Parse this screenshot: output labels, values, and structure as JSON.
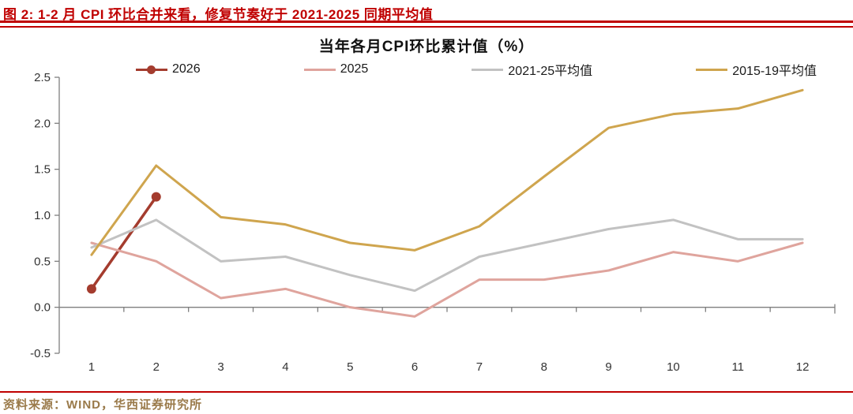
{
  "page": {
    "report_title": "图 2: 1-2 月 CPI 环比合并来看，修复节奏好于 2021-2025 同期平均值",
    "source_note": "资料来源：WIND，华西证券研究所",
    "accent_red": "#C00000",
    "source_text_color": "#9A7A4A"
  },
  "chart_data": {
    "type": "line",
    "title": "当年各月CPI环比累计值（%）",
    "xlabel": "",
    "ylabel": "",
    "categories": [
      "1",
      "2",
      "3",
      "4",
      "5",
      "6",
      "7",
      "8",
      "9",
      "10",
      "11",
      "12"
    ],
    "y_ticks": [
      "2.5",
      "2.0",
      "1.5",
      "1.0",
      "0.5",
      "0.0",
      "-0.5"
    ],
    "y_tick_values": [
      2.5,
      2.0,
      1.5,
      1.0,
      0.5,
      0.0,
      -0.5
    ],
    "ylim": [
      -0.5,
      2.5
    ],
    "grid": false,
    "legend_position": "top",
    "axis_color": "#7f7f7f",
    "tick_label_color": "#333333",
    "series": [
      {
        "name": "2026",
        "color": "#A43C2E",
        "marker": "circle",
        "values": [
          0.2,
          1.2,
          null,
          null,
          null,
          null,
          null,
          null,
          null,
          null,
          null,
          null
        ]
      },
      {
        "name": "2025",
        "color": "#DFA49D",
        "marker": "none",
        "values": [
          0.7,
          0.5,
          0.1,
          0.2,
          0.0,
          -0.1,
          0.3,
          0.3,
          0.4,
          0.6,
          0.5,
          0.7
        ]
      },
      {
        "name": "2021-25平均值",
        "color": "#C2C2C2",
        "marker": "none",
        "values": [
          0.65,
          0.95,
          0.5,
          0.55,
          0.35,
          0.18,
          0.55,
          0.7,
          0.85,
          0.95,
          0.74,
          0.74
        ]
      },
      {
        "name": "2015-19平均值",
        "color": "#CFA54E",
        "marker": "none",
        "values": [
          0.57,
          1.54,
          0.98,
          0.9,
          0.7,
          0.62,
          0.88,
          1.42,
          1.95,
          2.1,
          2.16,
          2.36
        ]
      }
    ]
  }
}
